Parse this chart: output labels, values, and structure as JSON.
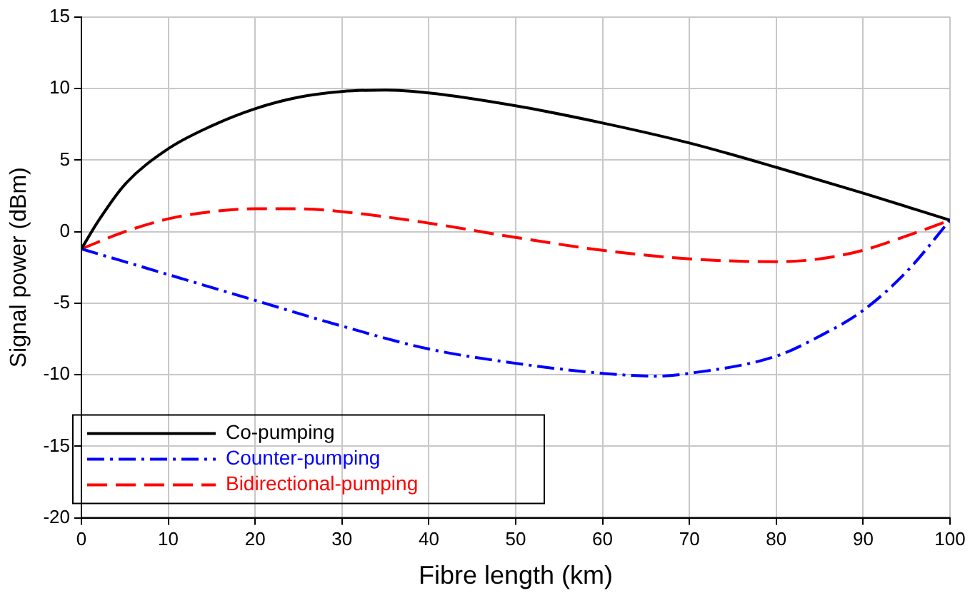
{
  "chart_data": {
    "type": "line",
    "xlabel": "Fibre length (km)",
    "ylabel": "Signal power (dBm)",
    "xlim": [
      0,
      100
    ],
    "xticks": [
      0,
      10,
      20,
      30,
      40,
      50,
      60,
      70,
      80,
      90,
      100
    ],
    "ylim": [
      -20,
      15
    ],
    "yticks": [
      -20,
      -15,
      -10,
      -5,
      0,
      5,
      10,
      15
    ],
    "grid": true,
    "legend": "bottom left",
    "marker": "none",
    "series": [
      {
        "name": "Co-pumping",
        "color": "#000000",
        "line_style": "solid",
        "x": [
          0,
          2,
          5,
          10,
          15,
          20,
          25,
          30,
          35,
          40,
          50,
          60,
          70,
          80,
          90,
          100
        ],
        "values": [
          -1.2,
          0.8,
          3.3,
          5.8,
          7.4,
          8.6,
          9.4,
          9.8,
          9.9,
          9.7,
          8.8,
          7.6,
          6.2,
          4.5,
          2.7,
          0.8
        ]
      },
      {
        "name": "Counter-pumping",
        "color": "#0000ff",
        "line_style": "dashdot",
        "x": [
          0,
          10,
          20,
          30,
          40,
          50,
          60,
          66,
          70,
          80,
          85,
          90,
          95,
          100
        ],
        "values": [
          -1.2,
          -3,
          -4.8,
          -6.6,
          -8.2,
          -9.2,
          -9.9,
          -10.1,
          -9.9,
          -8.7,
          -7.3,
          -5.5,
          -2.8,
          0.8
        ]
      },
      {
        "name": "Bidirectional-pumping",
        "color": "#ff0000",
        "line_style": "dashed",
        "x": [
          0,
          5,
          10,
          15,
          20,
          25,
          30,
          40,
          50,
          60,
          70,
          80,
          85,
          90,
          95,
          100
        ],
        "values": [
          -1.2,
          0,
          0.9,
          1.4,
          1.6,
          1.6,
          1.4,
          0.6,
          -0.4,
          -1.3,
          -1.9,
          -2.1,
          -1.9,
          -1.3,
          -0.3,
          0.8
        ]
      }
    ]
  }
}
